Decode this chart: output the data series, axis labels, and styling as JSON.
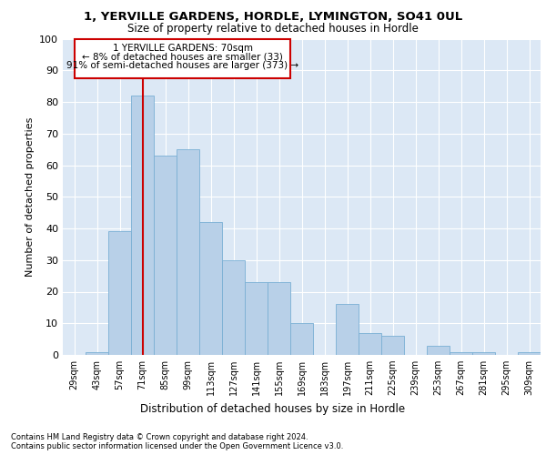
{
  "title1": "1, YERVILLE GARDENS, HORDLE, LYMINGTON, SO41 0UL",
  "title2": "Size of property relative to detached houses in Hordle",
  "xlabel": "Distribution of detached houses by size in Hordle",
  "ylabel": "Number of detached properties",
  "categories": [
    "29sqm",
    "43sqm",
    "57sqm",
    "71sqm",
    "85sqm",
    "99sqm",
    "113sqm",
    "127sqm",
    "141sqm",
    "155sqm",
    "169sqm",
    "183sqm",
    "197sqm",
    "211sqm",
    "225sqm",
    "239sqm",
    "253sqm",
    "267sqm",
    "281sqm",
    "295sqm",
    "309sqm"
  ],
  "values": [
    0,
    1,
    39,
    82,
    63,
    65,
    42,
    30,
    23,
    23,
    10,
    0,
    16,
    7,
    6,
    0,
    3,
    1,
    1,
    0,
    1
  ],
  "bar_color": "#b8d0e8",
  "bar_edge_color": "#7aafd4",
  "vline_x_index": 3,
  "vline_color": "#cc0000",
  "annotation_line1": "1 YERVILLE GARDENS: 70sqm",
  "annotation_line2": "← 8% of detached houses are smaller (33)",
  "annotation_line3": "91% of semi-detached houses are larger (373) →",
  "annotation_box_color": "#cc0000",
  "ylim": [
    0,
    100
  ],
  "yticks": [
    0,
    10,
    20,
    30,
    40,
    50,
    60,
    70,
    80,
    90,
    100
  ],
  "footnote1": "Contains HM Land Registry data © Crown copyright and database right 2024.",
  "footnote2": "Contains public sector information licensed under the Open Government Licence v3.0.",
  "plot_bg_color": "#dce8f5"
}
